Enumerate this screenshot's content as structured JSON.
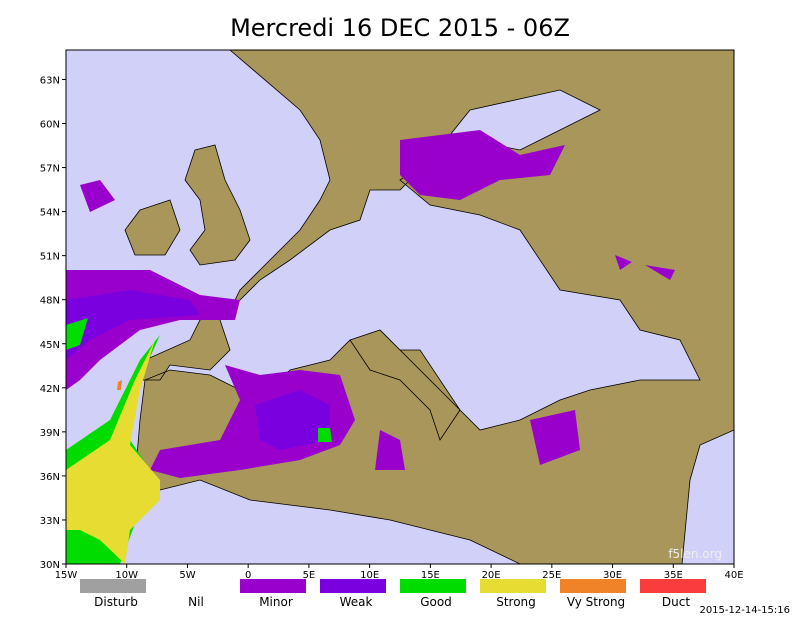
{
  "header": {
    "title": "Mercredi 16 DEC 2015 - 06Z"
  },
  "map": {
    "lat_labels": [
      "63N",
      "60N",
      "57N",
      "54N",
      "51N",
      "48N",
      "45N",
      "42N",
      "39N",
      "36N",
      "33N",
      "30N"
    ],
    "lon_labels": [
      "15W",
      "10W",
      "5W",
      "0",
      "5E",
      "10E",
      "15E",
      "20E",
      "25E",
      "30E",
      "35E",
      "40E"
    ],
    "watermark": "f5len.org"
  },
  "legend": {
    "items": [
      {
        "label": "Disturb",
        "color": "#a0a0a0"
      },
      {
        "label": "Nil",
        "color": "#ffffff"
      },
      {
        "label": "Minor",
        "color": "#9900cc"
      },
      {
        "label": "Weak",
        "color": "#7a00e0"
      },
      {
        "label": "Good",
        "color": "#00dc00"
      },
      {
        "label": "Strong",
        "color": "#e6dc32"
      },
      {
        "label": "Vy Strong",
        "color": "#f08228"
      },
      {
        "label": "Duct",
        "color": "#fa3c3c"
      }
    ]
  },
  "footer": {
    "timestamp": "2015-12-14-15:16"
  }
}
